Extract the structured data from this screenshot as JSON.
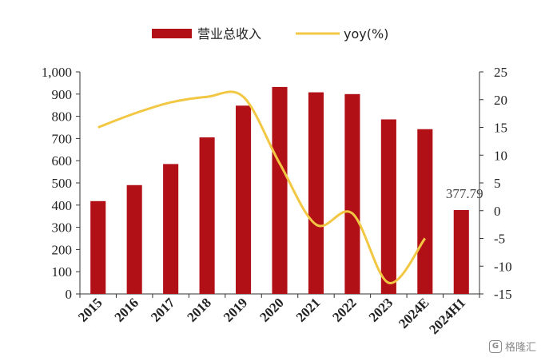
{
  "chart_data": {
    "type": "bar+line",
    "categories": [
      "2015",
      "2016",
      "2017",
      "2018",
      "2019",
      "2020",
      "2021",
      "2022",
      "2023",
      "2024E",
      "2024H1"
    ],
    "series": [
      {
        "name": "营业总收入",
        "type": "bar",
        "axis": "left",
        "color": "#b11116",
        "values": [
          418,
          490,
          585,
          705,
          848,
          932,
          908,
          900,
          786,
          742,
          377.79
        ]
      },
      {
        "name": "yoy(%)",
        "type": "line",
        "axis": "right",
        "color": "#f2c744",
        "values": [
          15,
          17.5,
          19.5,
          20.5,
          20.5,
          8.5,
          -2.5,
          -0.5,
          -13,
          -5,
          null
        ]
      }
    ],
    "annotation": {
      "category": "2024H1",
      "label": "377.79"
    },
    "yleft": {
      "min": 0,
      "max": 1000,
      "ticks": [
        "0",
        "100",
        "200",
        "300",
        "400",
        "500",
        "600",
        "700",
        "800",
        "900",
        "1,000"
      ]
    },
    "yright": {
      "min": -15,
      "max": 25,
      "ticks": [
        "-15",
        "-10",
        "-5",
        "0",
        "5",
        "10",
        "15",
        "20",
        "25"
      ]
    },
    "legend_position": "top-center",
    "grid": false,
    "title": "",
    "xlabel": "",
    "ylabel": ""
  },
  "watermark": {
    "text": "格隆汇",
    "logo": "G"
  }
}
